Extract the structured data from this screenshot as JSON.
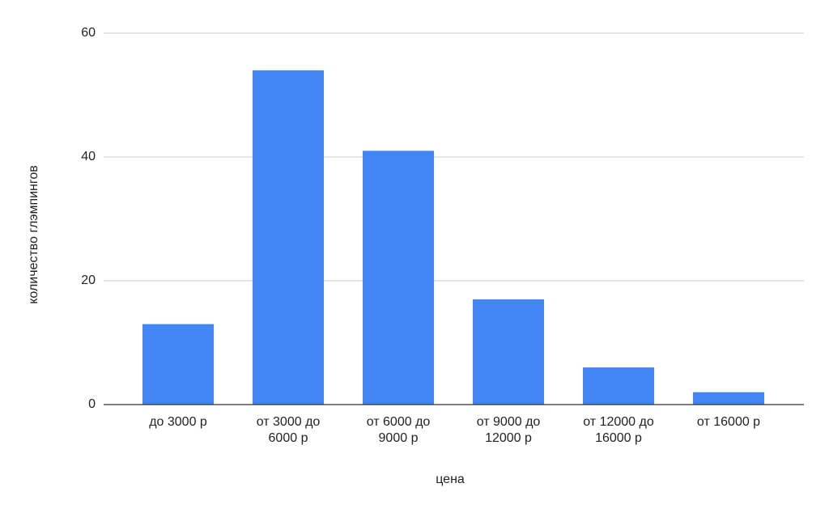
{
  "chart_data": {
    "type": "bar",
    "x_label": "цена",
    "y_label": "количество глэмпингов",
    "categories": [
      "до 3000 р",
      "от 3000 до 6000 р",
      "от 6000 до 9000 р",
      "от 9000 до 12000 р",
      "от 12000 до 16000 р",
      "от 16000 р"
    ],
    "values": [
      13,
      54,
      41,
      17,
      6,
      2
    ],
    "color": "#4285f4",
    "ylim": [
      0,
      60
    ],
    "yticks": [
      0,
      20,
      40,
      60
    ],
    "grid": true
  }
}
